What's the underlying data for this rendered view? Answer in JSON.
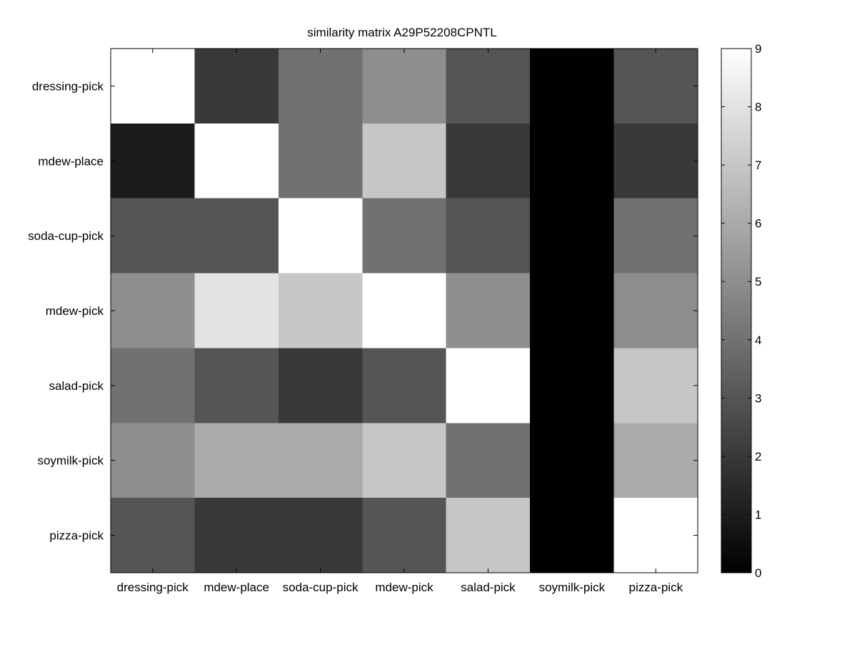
{
  "chart_data": {
    "type": "heatmap",
    "title": "similarity matrix A29P52208CPNTL",
    "xlabel": "",
    "ylabel": "",
    "rows": [
      "dressing-pick",
      "mdew-place",
      "soda-cup-pick",
      "mdew-pick",
      "salad-pick",
      "soymilk-pick",
      "pizza-pick"
    ],
    "cols": [
      "dressing-pick",
      "mdew-place",
      "soda-cup-pick",
      "mdew-pick",
      "salad-pick",
      "soymilk-pick",
      "pizza-pick"
    ],
    "values": [
      [
        9,
        2,
        4,
        5,
        3,
        0,
        3
      ],
      [
        1,
        9,
        4,
        7,
        2,
        0,
        2
      ],
      [
        3,
        3,
        9,
        4,
        3,
        0,
        4
      ],
      [
        5,
        8,
        7,
        9,
        5,
        0,
        5
      ],
      [
        4,
        3,
        2,
        3,
        9,
        0,
        7
      ],
      [
        5,
        6,
        6,
        7,
        4,
        0,
        6
      ],
      [
        3,
        2,
        2,
        3,
        7,
        0,
        9
      ]
    ],
    "colormap": "gray",
    "clim": [
      0,
      9
    ],
    "colorbar": {
      "ticks": [
        "0",
        "1",
        "2",
        "3",
        "4",
        "5",
        "6",
        "7",
        "8",
        "9"
      ]
    },
    "grid": false
  }
}
